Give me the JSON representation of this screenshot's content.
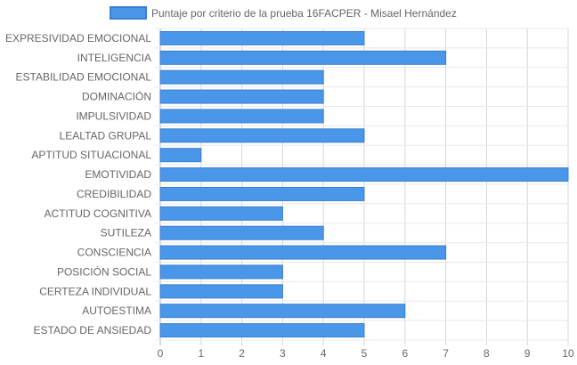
{
  "chart_data": {
    "type": "bar",
    "orientation": "horizontal",
    "title": "",
    "xlabel": "",
    "ylabel": "",
    "categories": [
      "EXPRESIVIDAD EMOCIONAL",
      "INTELIGENCIA",
      "ESTABILIDAD EMOCIONAL",
      "DOMINACIÓN",
      "IMPULSIVIDAD",
      "LEALTAD GRUPAL",
      "APTITUD SITUACIONAL",
      "EMOTIVIDAD",
      "CREDIBILIDAD",
      "ACTITUD COGNITIVA",
      "SUTILEZA",
      "CONSCIENCIA",
      "POSICIÓN SOCIAL",
      "CERTEZA INDIVIDUAL",
      "AUTOESTIMA",
      "ESTADO DE ANSIEDAD"
    ],
    "series": [
      {
        "name": "Puntaje por criterio de la prueba 16FACPER - Misael Hernández",
        "values": [
          5,
          7,
          4,
          4,
          4,
          5,
          1,
          10,
          5,
          3,
          4,
          7,
          3,
          3,
          6,
          5
        ],
        "color": "#4a97ea",
        "border_color": "#3a7fd0"
      }
    ],
    "xlim": [
      0,
      10
    ],
    "x_ticks": [
      "0",
      "1",
      "2",
      "3",
      "4",
      "5",
      "6",
      "7",
      "8",
      "9",
      "10"
    ],
    "grid": true,
    "legend_position": "top"
  }
}
